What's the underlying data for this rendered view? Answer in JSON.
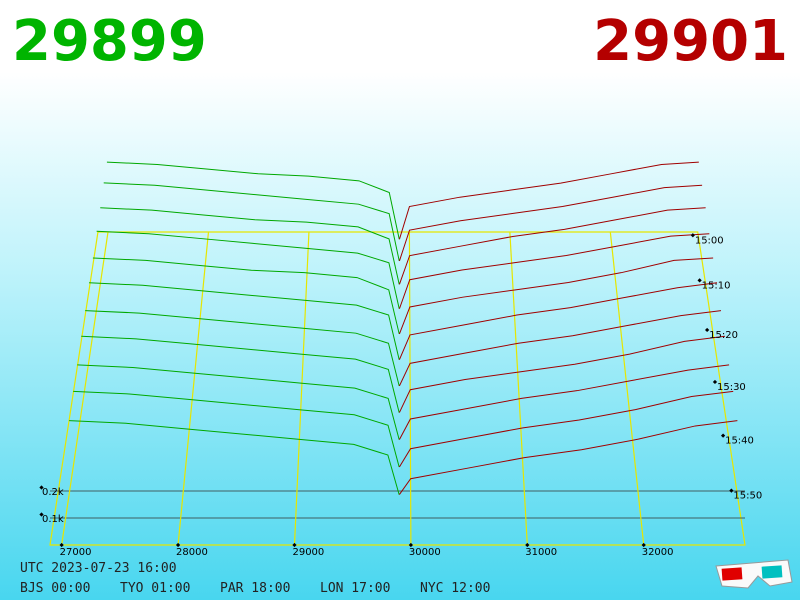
{
  "chart_data": {
    "type": "depth3d",
    "bid": 29899,
    "ask": 29901,
    "bid_color": "#00b400",
    "ask_color": "#b40000",
    "xlim": [
      26900,
      32870
    ],
    "xticks": [
      27000,
      28000,
      29000,
      30000,
      31000,
      32000
    ],
    "tlim": [
      898,
      959
    ],
    "tticks": [
      {
        "value": 900,
        "label": "15:00"
      },
      {
        "value": 910,
        "label": "15:10"
      },
      {
        "value": 920,
        "label": "15:20"
      },
      {
        "value": 930,
        "label": "15:30"
      },
      {
        "value": 940,
        "label": "15:40"
      },
      {
        "value": 950,
        "label": "15:50"
      }
    ],
    "zticks": [
      {
        "value": 0.1,
        "label": "0.1k"
      },
      {
        "value": 0.2,
        "label": "0.2k"
      }
    ],
    "times": [
      900,
      905,
      910,
      915,
      920,
      925,
      930,
      935,
      940,
      945,
      950
    ],
    "bids": {
      "color": "#00a800",
      "x": [
        27000,
        27500,
        28000,
        28500,
        29000,
        29500,
        29800,
        29899
      ],
      "values": [
        [
          0.33,
          0.32,
          0.3,
          0.28,
          0.27,
          0.25,
          0.2,
          0
        ],
        [
          0.33,
          0.32,
          0.3,
          0.28,
          0.26,
          0.24,
          0.2,
          0
        ],
        [
          0.32,
          0.31,
          0.29,
          0.27,
          0.26,
          0.24,
          0.19,
          0
        ],
        [
          0.32,
          0.31,
          0.29,
          0.27,
          0.25,
          0.23,
          0.19,
          0
        ],
        [
          0.31,
          0.3,
          0.28,
          0.26,
          0.25,
          0.23,
          0.18,
          0
        ],
        [
          0.31,
          0.3,
          0.28,
          0.26,
          0.24,
          0.22,
          0.18,
          0
        ],
        [
          0.3,
          0.29,
          0.27,
          0.25,
          0.23,
          0.21,
          0.17,
          0
        ],
        [
          0.3,
          0.29,
          0.27,
          0.25,
          0.23,
          0.21,
          0.17,
          0
        ],
        [
          0.29,
          0.28,
          0.26,
          0.24,
          0.22,
          0.2,
          0.16,
          0
        ],
        [
          0.29,
          0.28,
          0.26,
          0.24,
          0.22,
          0.2,
          0.16,
          0
        ],
        [
          0.28,
          0.27,
          0.25,
          0.23,
          0.21,
          0.19,
          0.15,
          0
        ]
      ]
    },
    "asks": {
      "color": "#a00000",
      "x": [
        29901,
        30000,
        30500,
        31000,
        31500,
        32000,
        32500,
        32870
      ],
      "values": [
        [
          0,
          0.14,
          0.18,
          0.21,
          0.24,
          0.28,
          0.32,
          0.33
        ],
        [
          0,
          0.13,
          0.17,
          0.2,
          0.23,
          0.27,
          0.31,
          0.32
        ],
        [
          0,
          0.12,
          0.16,
          0.2,
          0.23,
          0.27,
          0.31,
          0.32
        ],
        [
          0,
          0.12,
          0.16,
          0.19,
          0.22,
          0.26,
          0.3,
          0.31
        ],
        [
          0,
          0.11,
          0.15,
          0.18,
          0.21,
          0.25,
          0.3,
          0.31
        ],
        [
          0,
          0.1,
          0.14,
          0.18,
          0.21,
          0.25,
          0.29,
          0.31
        ],
        [
          0,
          0.09,
          0.13,
          0.17,
          0.2,
          0.24,
          0.28,
          0.3
        ],
        [
          0,
          0.09,
          0.13,
          0.16,
          0.19,
          0.23,
          0.28,
          0.3
        ],
        [
          0,
          0.08,
          0.12,
          0.16,
          0.19,
          0.23,
          0.27,
          0.29
        ],
        [
          0,
          0.07,
          0.11,
          0.15,
          0.18,
          0.22,
          0.27,
          0.29
        ],
        [
          0,
          0.06,
          0.1,
          0.14,
          0.17,
          0.21,
          0.26,
          0.28
        ]
      ]
    }
  },
  "footer": {
    "utc": "UTC 2023-07-23 16:00",
    "clocks": [
      "BJS 00:00",
      "TYO 01:00",
      "PAR 18:00",
      "LON 17:00",
      "NYC 12:00"
    ]
  }
}
